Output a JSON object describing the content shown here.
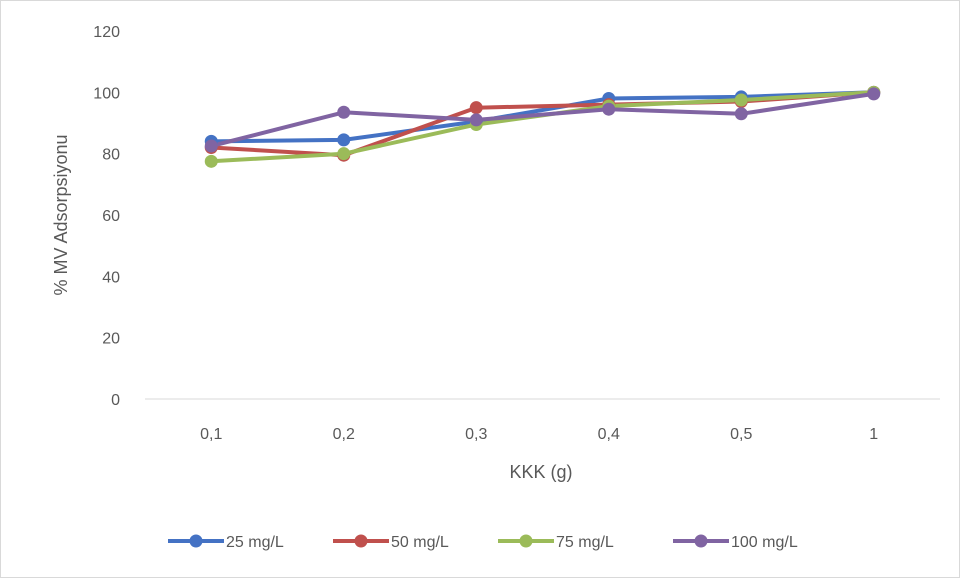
{
  "chart_data": {
    "type": "line",
    "title": "",
    "xlabel": "KKK (g)",
    "ylabel": "% MV Adsorpsiyonu",
    "categories": [
      "0,1",
      "0,2",
      "0,3",
      "0,4",
      "0,5",
      "1"
    ],
    "ylim": [
      0,
      120
    ],
    "yticks": [
      0,
      20,
      40,
      60,
      80,
      100,
      120
    ],
    "grid": false,
    "legend": "bottom",
    "series": [
      {
        "name": "25 mg/L",
        "color": "#4472c4",
        "values": [
          84,
          84.5,
          90.5,
          98,
          98.5,
          100
        ]
      },
      {
        "name": "50 mg/L",
        "color": "#c0504d",
        "values": [
          82,
          79.5,
          95,
          96,
          97,
          100
        ]
      },
      {
        "name": "75 mg/L",
        "color": "#9bbb59",
        "values": [
          77.5,
          80,
          89.5,
          95.5,
          97.5,
          100
        ]
      },
      {
        "name": "100 mg/L",
        "color": "#8064a2",
        "values": [
          82.5,
          93.5,
          91,
          94.5,
          93,
          99.5
        ]
      }
    ]
  }
}
